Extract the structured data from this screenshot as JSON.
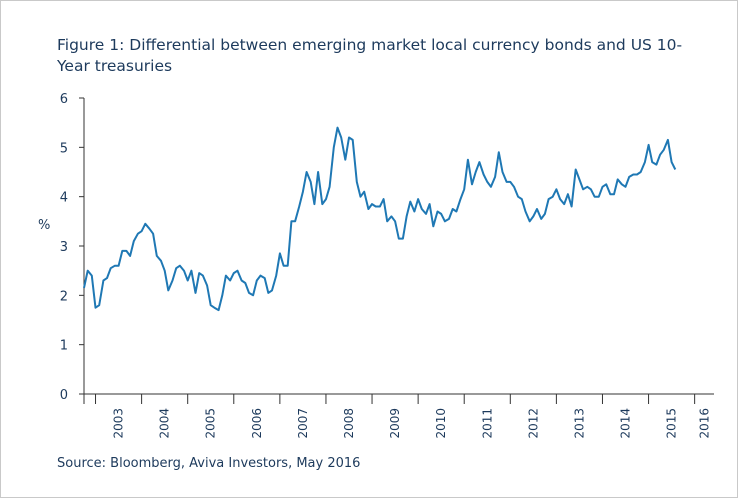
{
  "colors": {
    "line": "#1f78b4",
    "text": "#1d3a5c",
    "axis": "#333333",
    "frame": "#c9c9c9"
  },
  "chart_data": {
    "type": "line",
    "title": "Figure 1: Differential between emerging market local currency bonds and US 10-Year treasuries",
    "source": "Source: Bloomberg, Aviva Investors, May 2016",
    "ylabel": "%",
    "xlabel": "",
    "ylim": [
      0,
      6
    ],
    "yticks": [
      0,
      1,
      2,
      3,
      4,
      5,
      6
    ],
    "xlim": [
      2002.75,
      2016.42
    ],
    "xtick_labels": [
      "2003",
      "2004",
      "2005",
      "2006",
      "2007",
      "2008",
      "2009",
      "2010",
      "2011",
      "2012",
      "2013",
      "2014",
      "2015",
      "2016"
    ],
    "grid": false,
    "series": [
      {
        "values": [
          [
            2002.75,
            2.15
          ],
          [
            2002.83,
            2.5
          ],
          [
            2002.92,
            2.4
          ],
          [
            2003.0,
            1.75
          ],
          [
            2003.08,
            1.8
          ],
          [
            2003.17,
            2.3
          ],
          [
            2003.25,
            2.35
          ],
          [
            2003.33,
            2.55
          ],
          [
            2003.42,
            2.6
          ],
          [
            2003.5,
            2.6
          ],
          [
            2003.58,
            2.9
          ],
          [
            2003.67,
            2.9
          ],
          [
            2003.75,
            2.8
          ],
          [
            2003.83,
            3.1
          ],
          [
            2003.92,
            3.25
          ],
          [
            2004.0,
            3.3
          ],
          [
            2004.08,
            3.45
          ],
          [
            2004.17,
            3.35
          ],
          [
            2004.25,
            3.25
          ],
          [
            2004.33,
            2.8
          ],
          [
            2004.42,
            2.7
          ],
          [
            2004.5,
            2.5
          ],
          [
            2004.58,
            2.1
          ],
          [
            2004.67,
            2.3
          ],
          [
            2004.75,
            2.55
          ],
          [
            2004.83,
            2.6
          ],
          [
            2004.92,
            2.5
          ],
          [
            2005.0,
            2.3
          ],
          [
            2005.08,
            2.5
          ],
          [
            2005.17,
            2.05
          ],
          [
            2005.25,
            2.45
          ],
          [
            2005.33,
            2.4
          ],
          [
            2005.42,
            2.2
          ],
          [
            2005.5,
            1.8
          ],
          [
            2005.58,
            1.75
          ],
          [
            2005.67,
            1.7
          ],
          [
            2005.75,
            2.0
          ],
          [
            2005.83,
            2.4
          ],
          [
            2005.92,
            2.3
          ],
          [
            2006.0,
            2.45
          ],
          [
            2006.08,
            2.5
          ],
          [
            2006.17,
            2.3
          ],
          [
            2006.25,
            2.25
          ],
          [
            2006.33,
            2.05
          ],
          [
            2006.42,
            2.0
          ],
          [
            2006.5,
            2.3
          ],
          [
            2006.58,
            2.4
          ],
          [
            2006.67,
            2.35
          ],
          [
            2006.75,
            2.05
          ],
          [
            2006.83,
            2.1
          ],
          [
            2006.92,
            2.4
          ],
          [
            2007.0,
            2.85
          ],
          [
            2007.08,
            2.6
          ],
          [
            2007.17,
            2.6
          ],
          [
            2007.25,
            3.5
          ],
          [
            2007.33,
            3.5
          ],
          [
            2007.42,
            3.8
          ],
          [
            2007.5,
            4.1
          ],
          [
            2007.58,
            4.5
          ],
          [
            2007.67,
            4.3
          ],
          [
            2007.75,
            3.85
          ],
          [
            2007.83,
            4.5
          ],
          [
            2007.92,
            3.85
          ],
          [
            2008.0,
            3.95
          ],
          [
            2008.08,
            4.2
          ],
          [
            2008.17,
            5.0
          ],
          [
            2008.25,
            5.4
          ],
          [
            2008.33,
            5.2
          ],
          [
            2008.42,
            4.75
          ],
          [
            2008.5,
            5.2
          ],
          [
            2008.58,
            5.15
          ],
          [
            2008.67,
            4.3
          ],
          [
            2008.75,
            4.0
          ],
          [
            2008.83,
            4.1
          ],
          [
            2008.92,
            3.75
          ],
          [
            2009.0,
            3.85
          ],
          [
            2009.08,
            3.8
          ],
          [
            2009.17,
            3.8
          ],
          [
            2009.25,
            3.95
          ],
          [
            2009.33,
            3.5
          ],
          [
            2009.42,
            3.6
          ],
          [
            2009.5,
            3.5
          ],
          [
            2009.58,
            3.15
          ],
          [
            2009.67,
            3.15
          ],
          [
            2009.75,
            3.6
          ],
          [
            2009.83,
            3.9
          ],
          [
            2009.92,
            3.7
          ],
          [
            2010.0,
            3.95
          ],
          [
            2010.08,
            3.75
          ],
          [
            2010.17,
            3.65
          ],
          [
            2010.25,
            3.85
          ],
          [
            2010.33,
            3.4
          ],
          [
            2010.42,
            3.7
          ],
          [
            2010.5,
            3.65
          ],
          [
            2010.58,
            3.5
          ],
          [
            2010.67,
            3.55
          ],
          [
            2010.75,
            3.75
          ],
          [
            2010.83,
            3.7
          ],
          [
            2010.92,
            3.95
          ],
          [
            2011.0,
            4.15
          ],
          [
            2011.08,
            4.75
          ],
          [
            2011.17,
            4.25
          ],
          [
            2011.25,
            4.5
          ],
          [
            2011.33,
            4.7
          ],
          [
            2011.42,
            4.45
          ],
          [
            2011.5,
            4.3
          ],
          [
            2011.58,
            4.2
          ],
          [
            2011.67,
            4.4
          ],
          [
            2011.75,
            4.9
          ],
          [
            2011.83,
            4.5
          ],
          [
            2011.92,
            4.3
          ],
          [
            2012.0,
            4.3
          ],
          [
            2012.08,
            4.2
          ],
          [
            2012.17,
            4.0
          ],
          [
            2012.25,
            3.95
          ],
          [
            2012.33,
            3.7
          ],
          [
            2012.42,
            3.5
          ],
          [
            2012.5,
            3.6
          ],
          [
            2012.58,
            3.75
          ],
          [
            2012.67,
            3.55
          ],
          [
            2012.75,
            3.65
          ],
          [
            2012.83,
            3.95
          ],
          [
            2012.92,
            4.0
          ],
          [
            2013.0,
            4.15
          ],
          [
            2013.08,
            3.95
          ],
          [
            2013.17,
            3.85
          ],
          [
            2013.25,
            4.05
          ],
          [
            2013.33,
            3.8
          ],
          [
            2013.42,
            4.55
          ],
          [
            2013.5,
            4.35
          ],
          [
            2013.58,
            4.15
          ],
          [
            2013.67,
            4.2
          ],
          [
            2013.75,
            4.15
          ],
          [
            2013.83,
            4.0
          ],
          [
            2013.92,
            4.0
          ],
          [
            2014.0,
            4.2
          ],
          [
            2014.08,
            4.25
          ],
          [
            2014.17,
            4.05
          ],
          [
            2014.25,
            4.05
          ],
          [
            2014.33,
            4.35
          ],
          [
            2014.42,
            4.25
          ],
          [
            2014.5,
            4.2
          ],
          [
            2014.58,
            4.4
          ],
          [
            2014.67,
            4.45
          ],
          [
            2014.75,
            4.45
          ],
          [
            2014.83,
            4.5
          ],
          [
            2014.92,
            4.7
          ],
          [
            2015.0,
            5.05
          ],
          [
            2015.08,
            4.7
          ],
          [
            2015.17,
            4.65
          ],
          [
            2015.25,
            4.85
          ],
          [
            2015.33,
            4.95
          ],
          [
            2015.42,
            5.15
          ],
          [
            2015.5,
            4.7
          ],
          [
            2015.58,
            4.55
          ]
        ]
      }
    ]
  }
}
